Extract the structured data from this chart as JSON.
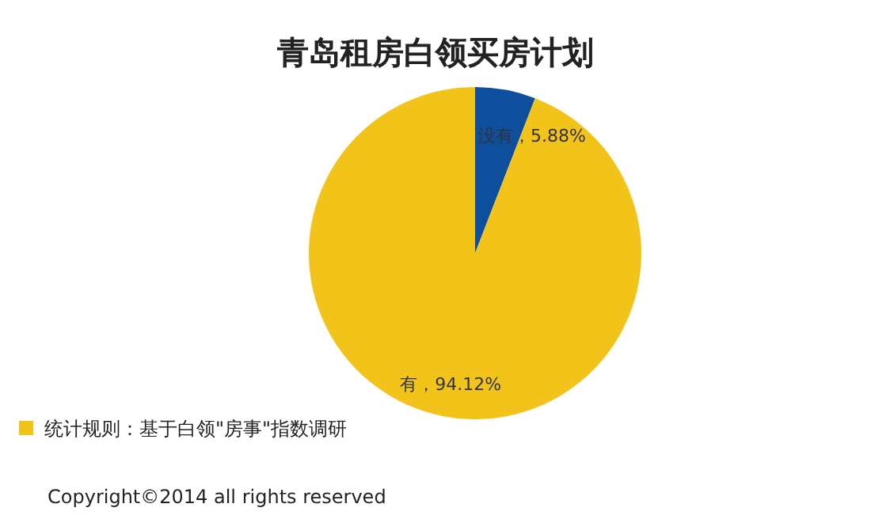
{
  "chart_data": {
    "type": "pie",
    "title": "青岛租房白领买房计划",
    "categories": [
      "没有",
      "有"
    ],
    "values": [
      5.88,
      94.12
    ],
    "colors": [
      "#0d4f9c",
      "#f2c41a"
    ],
    "value_labels": [
      "，5.88%",
      "，94.12%"
    ],
    "annotations": [
      "统计规则：基于白领\"房事\"指数调研",
      "Copyright©2014 all rights reserved"
    ]
  }
}
